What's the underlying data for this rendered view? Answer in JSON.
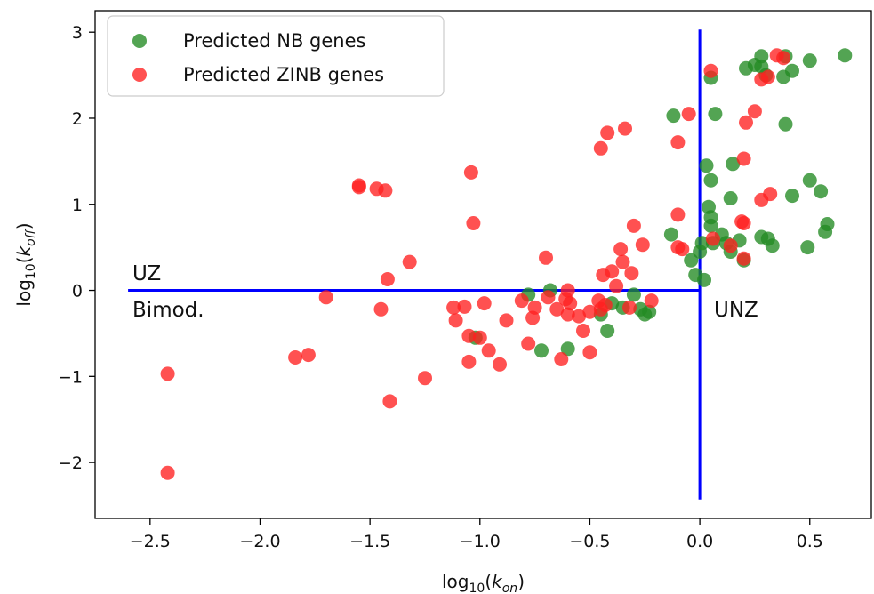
{
  "chart_data": {
    "type": "scatter",
    "xlabel_base": "log",
    "xlabel_sub": "10",
    "xlabel_var": "k",
    "xlabel_var_sub": "on",
    "ylabel_base": "log",
    "ylabel_sub": "10",
    "ylabel_var": "k",
    "ylabel_var_sub": "off",
    "xlim": [
      -2.75,
      0.78
    ],
    "ylim": [
      -2.65,
      3.25
    ],
    "xticks": [
      -2.5,
      -2.0,
      -1.5,
      -1.0,
      -0.5,
      0.0,
      0.5
    ],
    "xtick_labels": [
      "−2.5",
      "−2.0",
      "−1.5",
      "−1.0",
      "−0.5",
      "0.0",
      "0.5"
    ],
    "yticks": [
      -2,
      -1,
      0,
      1,
      2,
      3
    ],
    "ytick_labels": [
      "−2",
      "−1",
      "0",
      "1",
      "2",
      "3"
    ],
    "grid": false,
    "legend_position": "top-left",
    "annotations": [
      {
        "text": "UZ",
        "x": -2.58,
        "y": 0.2
      },
      {
        "text": "Bimod.",
        "x": -2.58,
        "y": -0.22
      },
      {
        "text": "UNZ",
        "x": 0.04,
        "y": -0.22
      }
    ],
    "reference_lines": [
      {
        "type": "horizontal",
        "y": 0,
        "x_from": -2.6,
        "x_to": 0.0,
        "color": "#0000ff"
      },
      {
        "type": "vertical",
        "x": 0,
        "y_from": -2.43,
        "y_to": 3.03,
        "color": "#0000ff"
      }
    ],
    "series": [
      {
        "name": "Predicted NB genes",
        "color": "#228B22",
        "points": [
          [
            -1.02,
            -0.55
          ],
          [
            -0.78,
            -0.05
          ],
          [
            -0.68,
            0.0
          ],
          [
            -0.72,
            -0.7
          ],
          [
            -0.6,
            -0.68
          ],
          [
            -0.45,
            -0.28
          ],
          [
            -0.42,
            -0.47
          ],
          [
            -0.4,
            -0.15
          ],
          [
            -0.35,
            -0.2
          ],
          [
            -0.3,
            -0.05
          ],
          [
            -0.27,
            -0.22
          ],
          [
            -0.25,
            -0.28
          ],
          [
            -0.23,
            -0.25
          ],
          [
            -0.13,
            0.65
          ],
          [
            -0.02,
            0.18
          ],
          [
            -0.12,
            2.03
          ],
          [
            -0.04,
            0.35
          ],
          [
            0.0,
            0.45
          ],
          [
            0.01,
            0.55
          ],
          [
            0.02,
            0.12
          ],
          [
            0.03,
            1.45
          ],
          [
            0.05,
            1.28
          ],
          [
            0.04,
            0.97
          ],
          [
            0.05,
            0.85
          ],
          [
            0.05,
            0.75
          ],
          [
            0.06,
            0.55
          ],
          [
            0.05,
            2.47
          ],
          [
            0.07,
            2.05
          ],
          [
            0.1,
            0.65
          ],
          [
            0.12,
            0.55
          ],
          [
            0.14,
            0.45
          ],
          [
            0.14,
            1.07
          ],
          [
            0.15,
            1.47
          ],
          [
            0.18,
            0.58
          ],
          [
            0.2,
            0.35
          ],
          [
            0.21,
            2.58
          ],
          [
            0.25,
            2.62
          ],
          [
            0.28,
            2.72
          ],
          [
            0.28,
            2.6
          ],
          [
            0.28,
            0.62
          ],
          [
            0.3,
            2.5
          ],
          [
            0.31,
            0.6
          ],
          [
            0.33,
            0.52
          ],
          [
            0.38,
            2.48
          ],
          [
            0.39,
            1.93
          ],
          [
            0.39,
            2.72
          ],
          [
            0.42,
            2.55
          ],
          [
            0.42,
            1.1
          ],
          [
            0.49,
            0.5
          ],
          [
            0.5,
            2.67
          ],
          [
            0.5,
            1.28
          ],
          [
            0.55,
            1.15
          ],
          [
            0.57,
            0.68
          ],
          [
            0.58,
            0.77
          ],
          [
            0.66,
            2.73
          ]
        ]
      },
      {
        "name": "Predicted ZINB genes",
        "color": "#FF2020",
        "points": [
          [
            -2.42,
            -0.97
          ],
          [
            -2.42,
            -2.12
          ],
          [
            -1.84,
            -0.78
          ],
          [
            -1.78,
            -0.75
          ],
          [
            -1.7,
            -0.08
          ],
          [
            -1.55,
            1.22
          ],
          [
            -1.55,
            1.2
          ],
          [
            -1.47,
            1.18
          ],
          [
            -1.43,
            1.16
          ],
          [
            -1.45,
            -0.22
          ],
          [
            -1.42,
            0.13
          ],
          [
            -1.41,
            -1.29
          ],
          [
            -1.32,
            0.33
          ],
          [
            -1.25,
            -1.02
          ],
          [
            -1.12,
            -0.2
          ],
          [
            -1.11,
            -0.35
          ],
          [
            -1.07,
            -0.19
          ],
          [
            -1.05,
            -0.53
          ],
          [
            -1.05,
            -0.83
          ],
          [
            -1.04,
            1.37
          ],
          [
            -1.03,
            0.78
          ],
          [
            -1.0,
            -0.55
          ],
          [
            -0.98,
            -0.15
          ],
          [
            -0.96,
            -0.7
          ],
          [
            -0.91,
            -0.86
          ],
          [
            -0.88,
            -0.35
          ],
          [
            -0.81,
            -0.12
          ],
          [
            -0.78,
            -0.62
          ],
          [
            -0.76,
            -0.32
          ],
          [
            -0.75,
            -0.2
          ],
          [
            -0.7,
            0.38
          ],
          [
            -0.69,
            -0.08
          ],
          [
            -0.65,
            -0.22
          ],
          [
            -0.63,
            -0.8
          ],
          [
            -0.61,
            -0.1
          ],
          [
            -0.6,
            0.0
          ],
          [
            -0.6,
            -0.28
          ],
          [
            -0.59,
            -0.15
          ],
          [
            -0.55,
            -0.3
          ],
          [
            -0.53,
            -0.47
          ],
          [
            -0.5,
            -0.72
          ],
          [
            -0.5,
            -0.25
          ],
          [
            -0.46,
            -0.12
          ],
          [
            -0.45,
            -0.22
          ],
          [
            -0.45,
            1.65
          ],
          [
            -0.44,
            0.18
          ],
          [
            -0.43,
            -0.17
          ],
          [
            -0.42,
            1.83
          ],
          [
            -0.4,
            0.22
          ],
          [
            -0.38,
            0.05
          ],
          [
            -0.36,
            0.48
          ],
          [
            -0.35,
            0.33
          ],
          [
            -0.34,
            1.88
          ],
          [
            -0.32,
            -0.2
          ],
          [
            -0.31,
            0.2
          ],
          [
            -0.3,
            0.75
          ],
          [
            -0.26,
            0.53
          ],
          [
            -0.22,
            -0.12
          ],
          [
            -0.1,
            0.88
          ],
          [
            -0.1,
            0.5
          ],
          [
            -0.1,
            1.72
          ],
          [
            -0.08,
            0.48
          ],
          [
            -0.05,
            2.05
          ],
          [
            0.05,
            2.55
          ],
          [
            0.06,
            0.6
          ],
          [
            0.14,
            0.52
          ],
          [
            0.19,
            0.8
          ],
          [
            0.2,
            0.37
          ],
          [
            0.2,
            0.78
          ],
          [
            0.2,
            1.53
          ],
          [
            0.21,
            1.95
          ],
          [
            0.25,
            2.08
          ],
          [
            0.28,
            2.45
          ],
          [
            0.28,
            1.05
          ],
          [
            0.31,
            2.48
          ],
          [
            0.32,
            1.12
          ],
          [
            0.35,
            2.73
          ],
          [
            0.38,
            2.7
          ]
        ]
      }
    ]
  }
}
